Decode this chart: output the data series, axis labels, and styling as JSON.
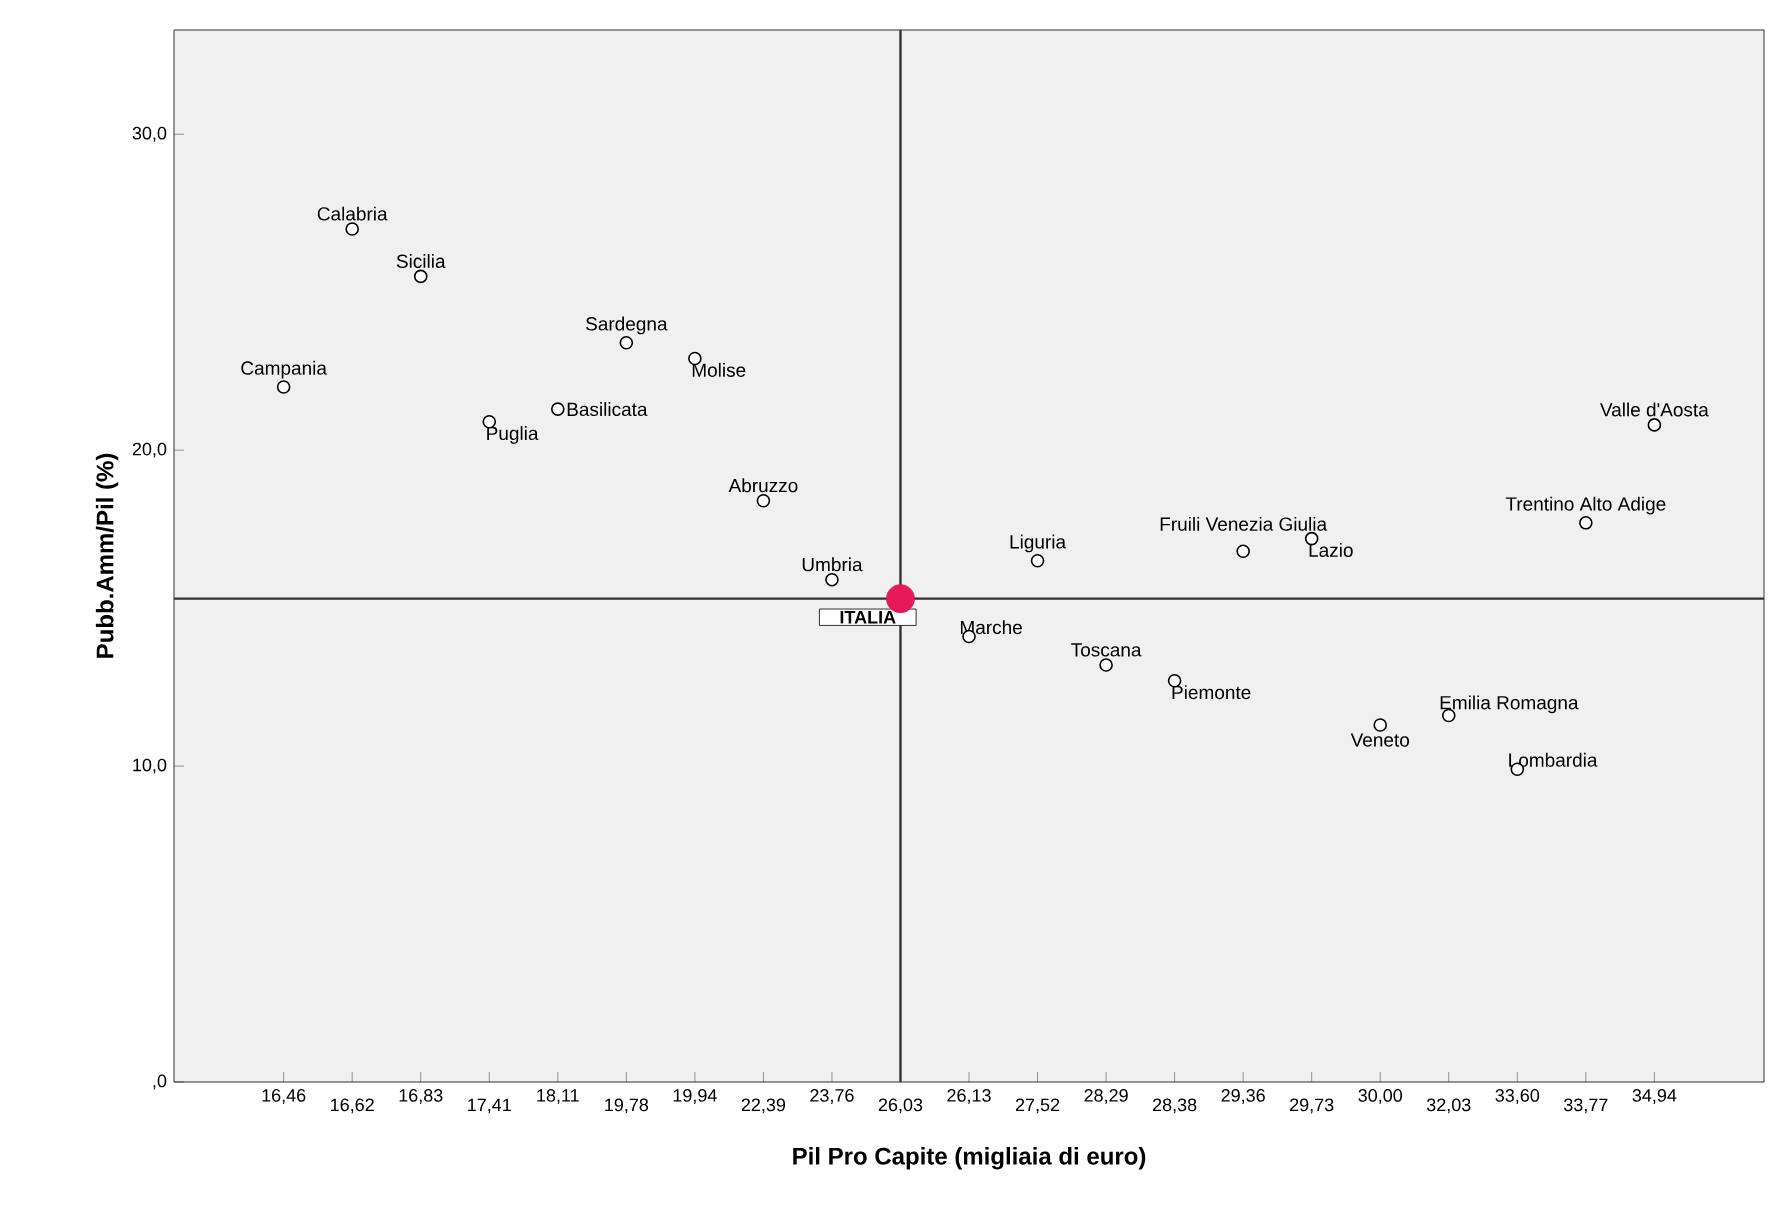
{
  "chart_data": {
    "type": "scatter",
    "xlabel": "Pil Pro Capite (migliaia di euro)",
    "ylabel": "Pubb.Amm/Pil (%)",
    "categories": [
      "16,46",
      "16,62",
      "16,83",
      "17,41",
      "18,11",
      "19,78",
      "19,94",
      "22,39",
      "23,76",
      "26,03",
      "26,13",
      "27,52",
      "28,29",
      "28,38",
      "29,36",
      "29,73",
      "30,00",
      "32,03",
      "33,60",
      "33,77",
      "34,94"
    ],
    "series": [
      {
        "color": "#000000",
        "values": [
          22.0,
          27.0,
          25.5,
          20.9,
          21.3,
          23.4,
          22.9,
          18.4,
          15.9,
          null,
          14.1,
          16.5,
          13.2,
          12.7,
          16.8,
          17.2,
          11.3,
          11.6,
          9.9,
          17.7,
          20.8
        ]
      },
      {
        "color": "#e6195a",
        "values": [
          null,
          null,
          null,
          null,
          null,
          null,
          null,
          null,
          null,
          15.3,
          null,
          null,
          null,
          null,
          null,
          null,
          null,
          null,
          null,
          null,
          null
        ]
      }
    ],
    "marker": "circle",
    "ylim": [
      0,
      33.3
    ],
    "yticks": [
      {
        "value": 0,
        "label": ",0"
      },
      {
        "value": 10,
        "label": "10,0"
      },
      {
        "value": 20,
        "label": "20,0"
      },
      {
        "value": 30,
        "label": "30,0"
      }
    ],
    "ref_lines": [
      {
        "axis": "x",
        "value": "26,03",
        "color": "#333333"
      },
      {
        "axis": "y",
        "value": 15.3,
        "color": "#333333"
      }
    ],
    "annotations": [
      {
        "text": "Campania",
        "x": "16,46",
        "y": 22.0
      },
      {
        "text": "Calabria",
        "x": "16,62",
        "y": 27.0
      },
      {
        "text": "Sicilia",
        "x": "16,83",
        "y": 25.5
      },
      {
        "text": "Puglia",
        "x": "17,41",
        "y": 20.9
      },
      {
        "text": "Basilicata",
        "x": "18,11",
        "y": 21.3
      },
      {
        "text": "Sardegna",
        "x": "19,78",
        "y": 23.4
      },
      {
        "text": "Molise",
        "x": "19,94",
        "y": 22.9
      },
      {
        "text": "Abruzzo",
        "x": "22,39",
        "y": 18.4
      },
      {
        "text": "Umbria",
        "x": "23,76",
        "y": 15.9
      },
      {
        "text": "ITALIA",
        "x": "26,03",
        "y": 15.3
      },
      {
        "text": "Marche",
        "x": "26,13",
        "y": 14.1
      },
      {
        "text": "Liguria",
        "x": "27,52",
        "y": 16.5
      },
      {
        "text": "Toscana",
        "x": "28,29",
        "y": 13.2
      },
      {
        "text": "Piemonte",
        "x": "28,38",
        "y": 12.7
      },
      {
        "text": "Fruili Venezia Giulia",
        "x": "29,36",
        "y": 16.8
      },
      {
        "text": "Lazio",
        "x": "29,73",
        "y": 17.2
      },
      {
        "text": "Veneto",
        "x": "30,00",
        "y": 11.3
      },
      {
        "text": "Emilia Romagna",
        "x": "32,03",
        "y": 11.6
      },
      {
        "text": "Lombardia",
        "x": "33,60",
        "y": 9.9
      },
      {
        "text": "Trentino Alto Adige",
        "x": "33,77",
        "y": 17.7
      },
      {
        "text": "Valle d'Aosta",
        "x": "34,94",
        "y": 20.8
      }
    ]
  }
}
